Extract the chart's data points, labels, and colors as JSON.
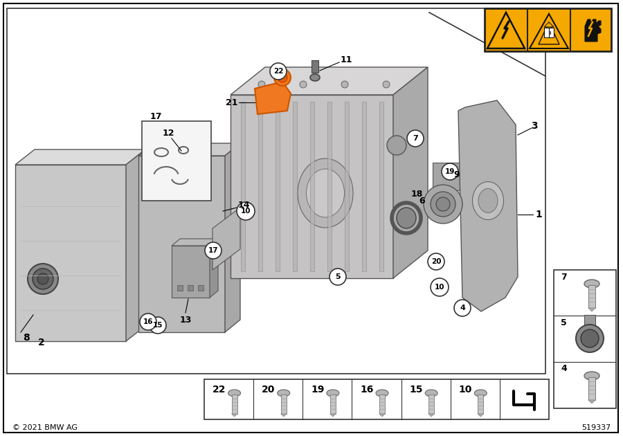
{
  "bg": "#ffffff",
  "border": "#000000",
  "copyright": "© 2021 BMW AG",
  "part_number": "519337",
  "warning_bg": "#f5a800",
  "bolt_labels": [
    "22",
    "20",
    "19",
    "16",
    "15",
    "10"
  ],
  "right_panel": [
    "7",
    "5",
    "4"
  ],
  "label_fs": 9,
  "gray1": "#c0c0c0",
  "gray2": "#a0a0a0",
  "gray3": "#888888",
  "gray4": "#d8d8d8",
  "orange": "#f07820"
}
